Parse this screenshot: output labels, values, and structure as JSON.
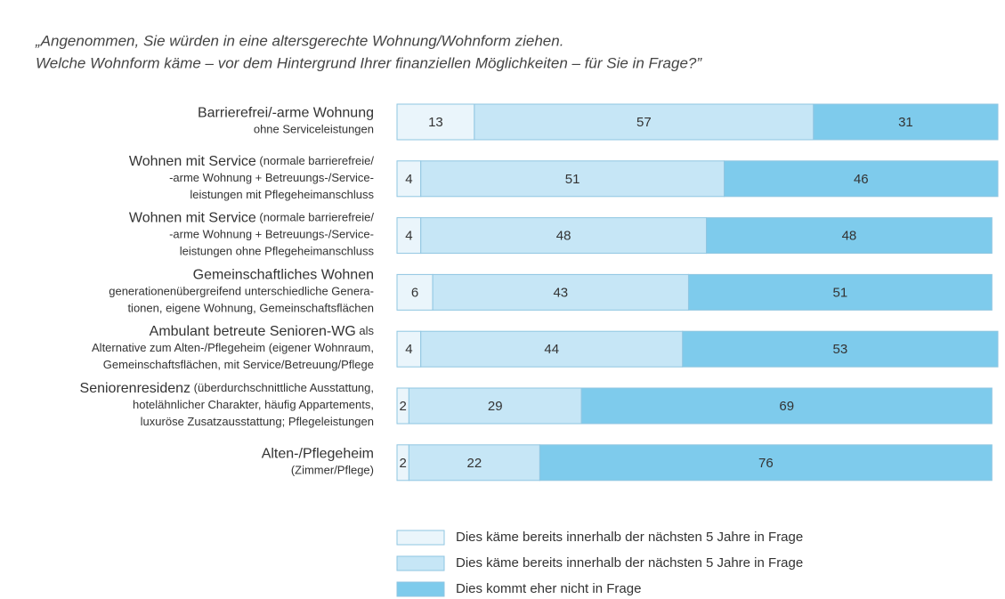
{
  "chart_data": {
    "type": "stacked-bar-horizontal",
    "title": [
      "„Angenommen, Sie würden in eine altersgerechte Wohnung/Wohnform ziehen.",
      "Welche Wohnform käme – vor dem Hintergrund Ihrer finanziellen Möglichkeiten – für Sie in Frage?”"
    ],
    "categories": [
      [
        [
          "Barrierefrei/-arme Wohnung"
        ],
        [
          "ohne Serviceleistungen"
        ]
      ],
      [
        [
          "Wohnen mit Service",
          " (normale barrierefreie/"
        ],
        [
          "-arme Wohnung + Betreuungs-/Service-"
        ],
        [
          "leistungen mit Pflegeheimanschluss"
        ]
      ],
      [
        [
          "Wohnen mit Service",
          " (normale barrierefreie/"
        ],
        [
          "-arme Wohnung + Betreuungs-/Service-"
        ],
        [
          "leistungen ohne Pflegeheimanschluss"
        ]
      ],
      [
        [
          "Gemeinschaftliches Wohnen"
        ],
        [
          "generationenübergreifend unterschiedliche Genera-"
        ],
        [
          "tionen, eigene Wohnung, Gemeinschaftsflächen"
        ]
      ],
      [
        [
          "Ambulant betreute Senioren-WG",
          " als"
        ],
        [
          "Alternative zum Alten-/Pflegeheim (eigener Wohnraum,"
        ],
        [
          "Gemeinschaftsflächen, mit Service/Betreuung/Pflege"
        ]
      ],
      [
        [
          "Seniorenresidenz",
          " (überdurchschnittliche Ausstattung,"
        ],
        [
          "hotelähnlicher Charakter, häufig Appartements,"
        ],
        [
          "luxuröse Zusatzausstattung; Pflegeleistungen"
        ]
      ],
      [
        [
          "Alten-/Pflegeheim"
        ],
        [
          "(Zimmer/Pflege)"
        ]
      ]
    ],
    "series": [
      {
        "name": "Dies käme bereits innerhalb der nächsten 5 Jahre in Frage",
        "color": "#eaf5fb",
        "values": [
          13,
          4,
          4,
          6,
          4,
          2,
          2
        ]
      },
      {
        "name": "Dies käme bereits innerhalb der nächsten 5 Jahre in Frage",
        "color": "#c6e6f6",
        "values": [
          57,
          51,
          48,
          43,
          44,
          29,
          22
        ]
      },
      {
        "name": "Dies kommt eher nicht in Frage",
        "color": "#7ecbec",
        "values": [
          31,
          46,
          48,
          51,
          53,
          69,
          76
        ]
      }
    ],
    "xlim": [
      0,
      101
    ]
  }
}
